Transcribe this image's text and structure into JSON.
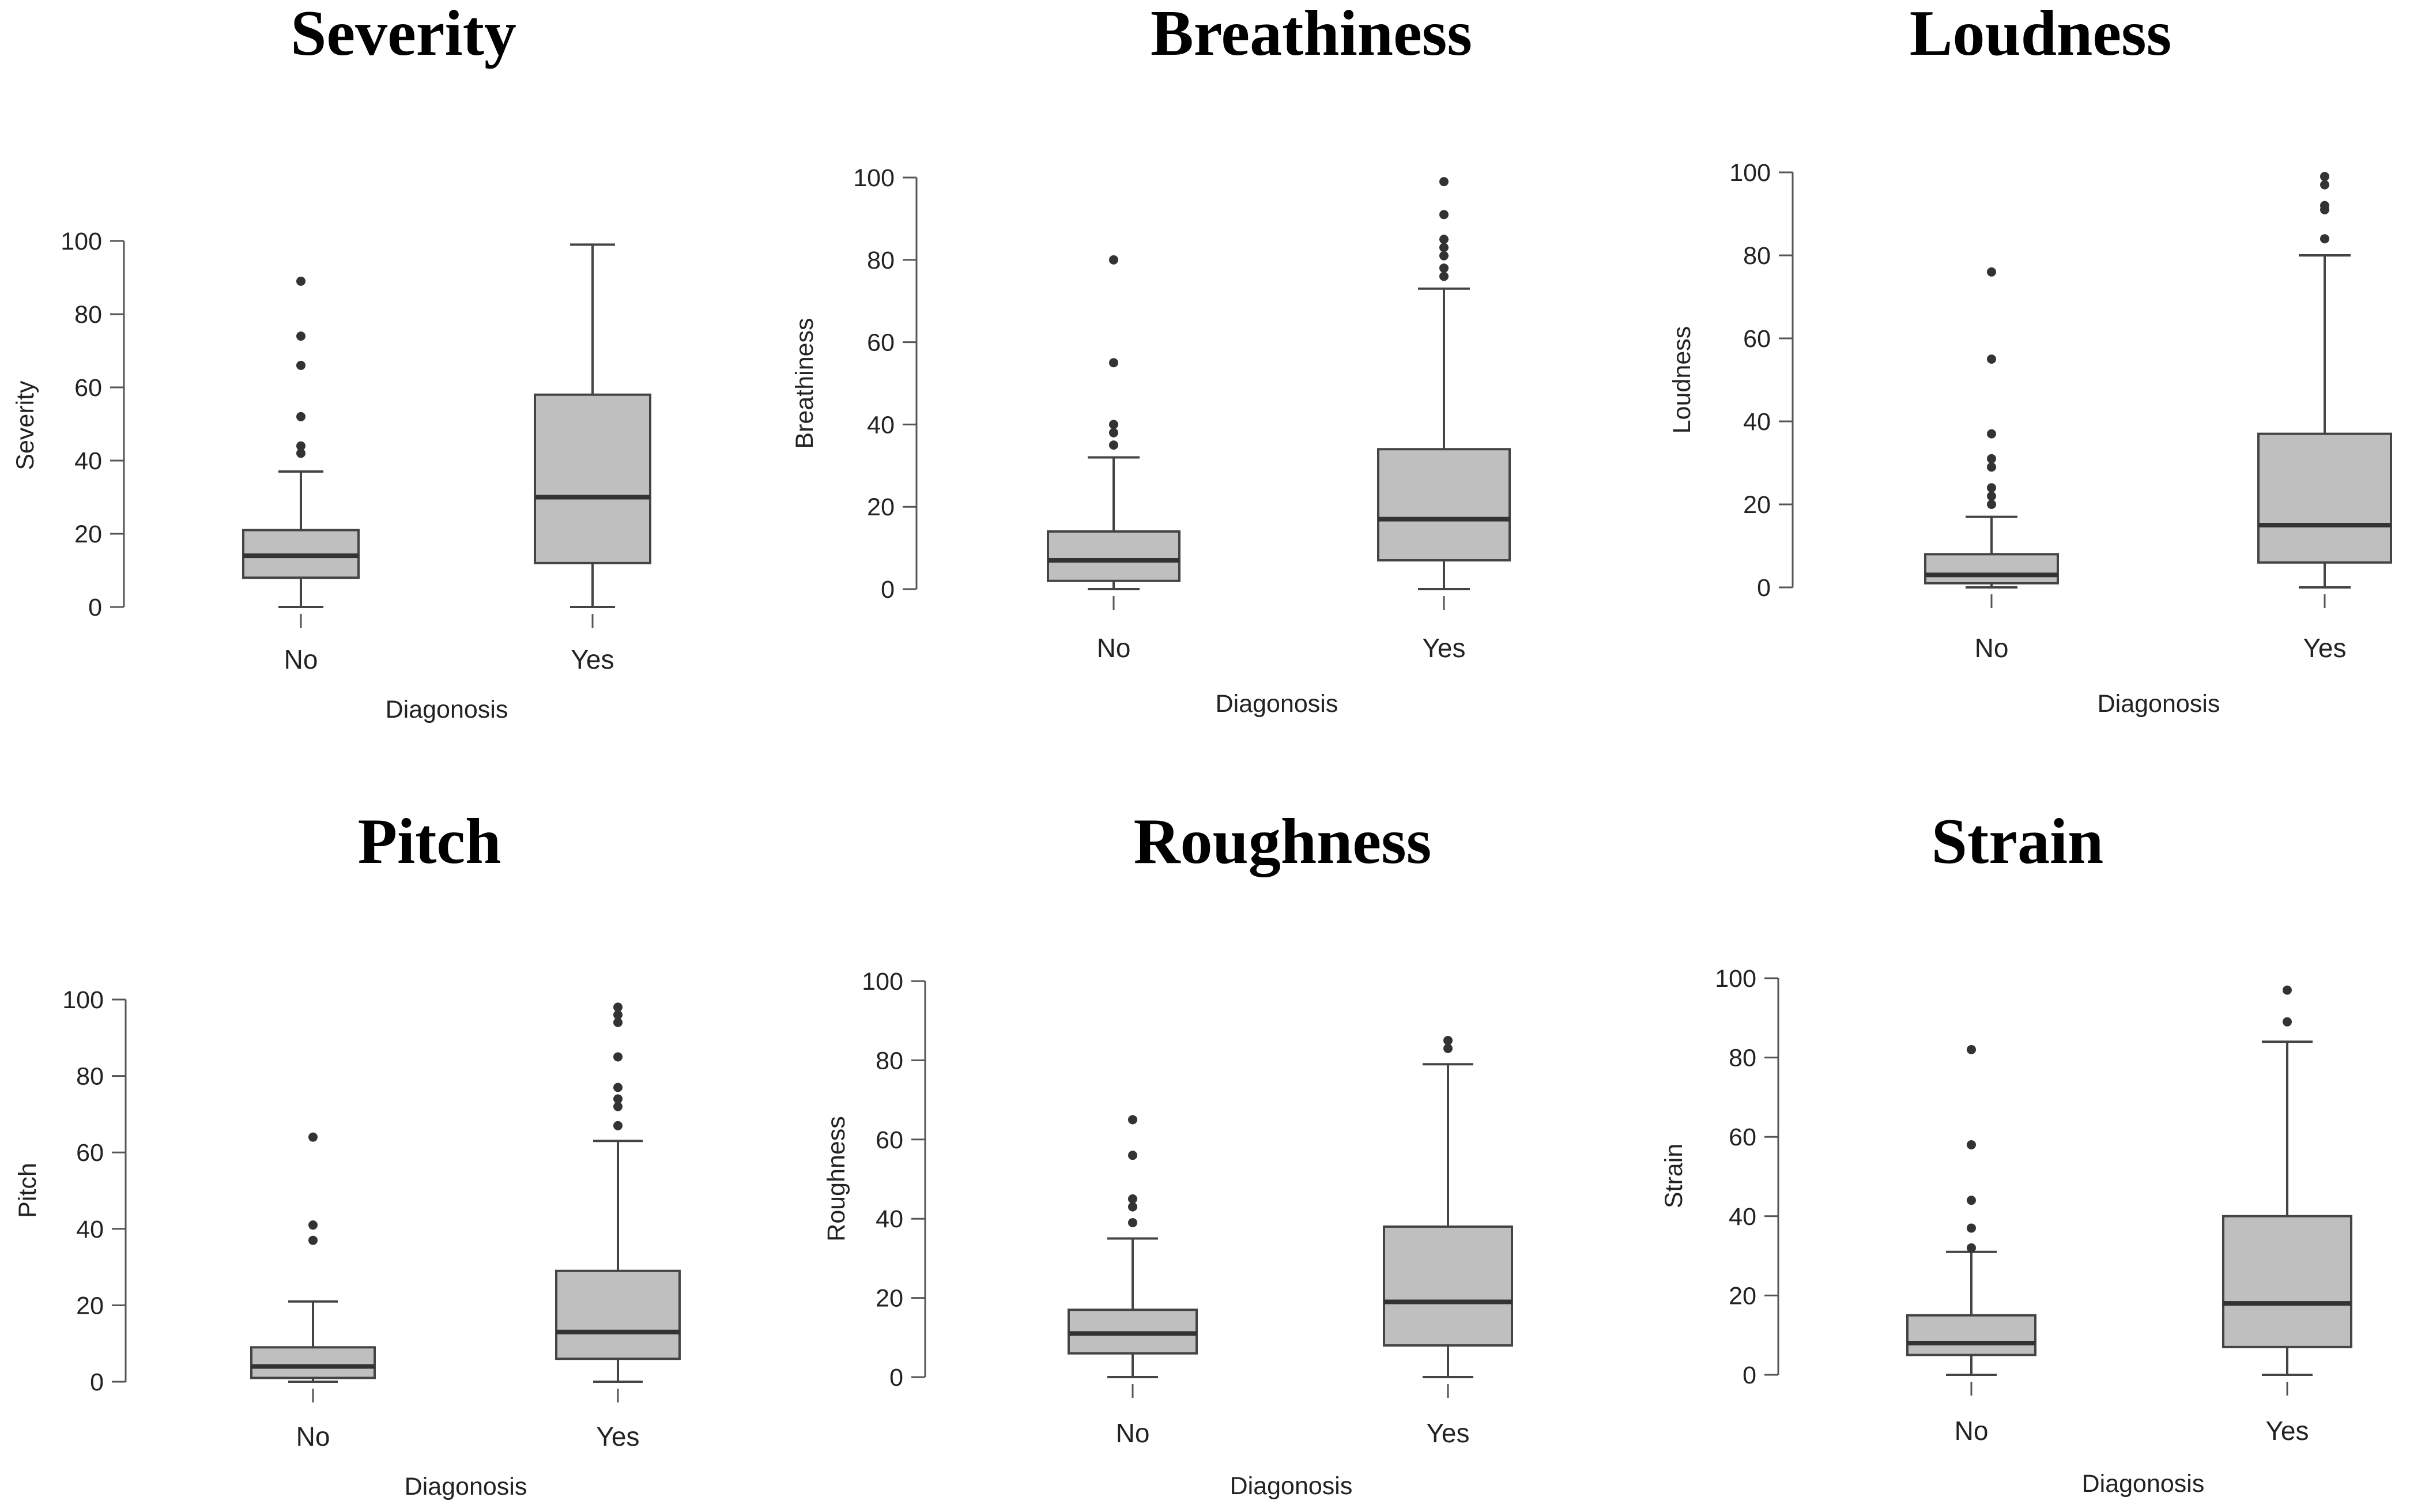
{
  "chart_data": [
    {
      "type": "boxplot",
      "title": "Severity",
      "ylabel": "Severity",
      "xlabel": "Diagonosis",
      "categories": [
        "No",
        "Yes"
      ],
      "ylim": [
        0,
        100
      ],
      "yticks": [
        0,
        20,
        40,
        60,
        80,
        100
      ],
      "boxes": [
        {
          "name": "No",
          "min": 0,
          "q1": 8,
          "median": 14,
          "q3": 21,
          "max": 37,
          "outliers": [
            42,
            44,
            52,
            66,
            74,
            89
          ]
        },
        {
          "name": "Yes",
          "min": 0,
          "q1": 12,
          "median": 30,
          "q3": 58,
          "max": 99,
          "outliers": []
        }
      ]
    },
    {
      "type": "boxplot",
      "title": "Breathiness",
      "ylabel": "Breathiness",
      "xlabel": "Diagonosis",
      "categories": [
        "No",
        "Yes"
      ],
      "ylim": [
        0,
        100
      ],
      "yticks": [
        0,
        20,
        40,
        60,
        80,
        100
      ],
      "boxes": [
        {
          "name": "No",
          "min": 0,
          "q1": 2,
          "median": 7,
          "q3": 14,
          "max": 32,
          "outliers": [
            35,
            38,
            40,
            55,
            80
          ]
        },
        {
          "name": "Yes",
          "min": 0,
          "q1": 7,
          "median": 17,
          "q3": 34,
          "max": 73,
          "outliers": [
            76,
            78,
            81,
            83,
            85,
            91,
            99
          ]
        }
      ]
    },
    {
      "type": "boxplot",
      "title": "Loudness",
      "ylabel": "Loudness",
      "xlabel": "Diagonosis",
      "categories": [
        "No",
        "Yes"
      ],
      "ylim": [
        0,
        100
      ],
      "yticks": [
        0,
        20,
        40,
        60,
        80,
        100
      ],
      "boxes": [
        {
          "name": "No",
          "min": 0,
          "q1": 1,
          "median": 3,
          "q3": 8,
          "max": 17,
          "outliers": [
            20,
            22,
            24,
            29,
            31,
            37,
            55,
            76
          ]
        },
        {
          "name": "Yes",
          "min": 0,
          "q1": 6,
          "median": 15,
          "q3": 37,
          "max": 80,
          "outliers": [
            84,
            91,
            92,
            97,
            99
          ]
        }
      ]
    },
    {
      "type": "boxplot",
      "title": "Pitch",
      "ylabel": "Pitch",
      "xlabel": "Diagonosis",
      "categories": [
        "No",
        "Yes"
      ],
      "ylim": [
        0,
        100
      ],
      "yticks": [
        0,
        20,
        40,
        60,
        80,
        100
      ],
      "boxes": [
        {
          "name": "No",
          "min": 0,
          "q1": 1,
          "median": 4,
          "q3": 9,
          "max": 21,
          "outliers": [
            37,
            41,
            64
          ]
        },
        {
          "name": "Yes",
          "min": 0,
          "q1": 6,
          "median": 13,
          "q3": 29,
          "max": 63,
          "outliers": [
            67,
            72,
            74,
            77,
            85,
            94,
            96,
            98
          ]
        }
      ]
    },
    {
      "type": "boxplot",
      "title": "Roughness",
      "ylabel": "Roughness",
      "xlabel": "Diagonosis",
      "categories": [
        "No",
        "Yes"
      ],
      "ylim": [
        0,
        100
      ],
      "yticks": [
        0,
        20,
        40,
        60,
        80,
        100
      ],
      "boxes": [
        {
          "name": "No",
          "min": 0,
          "q1": 6,
          "median": 11,
          "q3": 17,
          "max": 35,
          "outliers": [
            39,
            43,
            45,
            56,
            65
          ]
        },
        {
          "name": "Yes",
          "min": 0,
          "q1": 8,
          "median": 19,
          "q3": 38,
          "max": 79,
          "outliers": [
            83,
            85
          ]
        }
      ]
    },
    {
      "type": "boxplot",
      "title": "Strain",
      "ylabel": "Strain",
      "xlabel": "Diagonosis",
      "categories": [
        "No",
        "Yes"
      ],
      "ylim": [
        0,
        100
      ],
      "yticks": [
        0,
        20,
        40,
        60,
        80,
        100
      ],
      "boxes": [
        {
          "name": "No",
          "min": 0,
          "q1": 5,
          "median": 8,
          "q3": 15,
          "max": 31,
          "outliers": [
            32,
            37,
            44,
            58,
            82
          ]
        },
        {
          "name": "Yes",
          "min": 0,
          "q1": 7,
          "median": 18,
          "q3": 40,
          "max": 84,
          "outliers": [
            89,
            97
          ]
        }
      ]
    }
  ],
  "colors": {
    "box_fill": "#bfbfbf",
    "box_stroke": "#444444",
    "median": "#333333",
    "axis": "#555555",
    "text": "#222222"
  }
}
